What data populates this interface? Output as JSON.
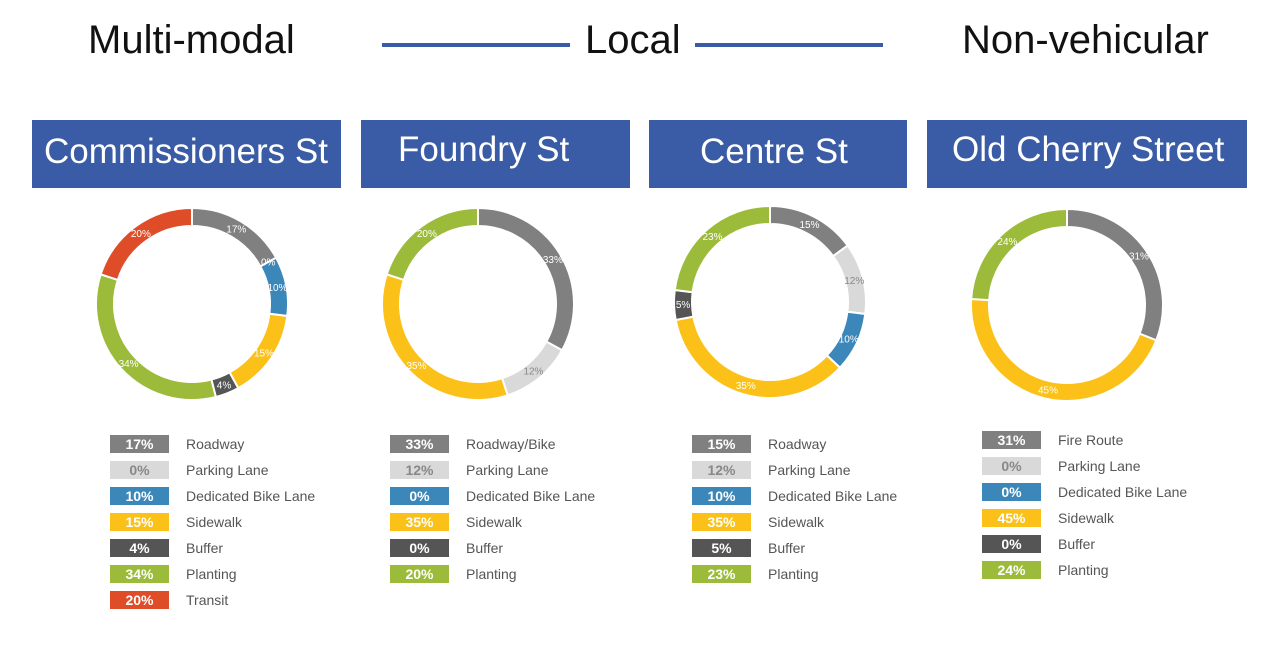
{
  "header": {
    "left_label": "Multi-modal",
    "center_label": "Local",
    "right_label": "Non-vehicular"
  },
  "colors": {
    "rule": "#3a5ba5",
    "banner": "#3a5ba5",
    "roadway": "#808080",
    "parking": "#d9d9d9",
    "bike": "#3b87b9",
    "sidewalk": "#fcc119",
    "buffer": "#555555",
    "planting": "#9dbb3b",
    "transit": "#de4d27"
  },
  "chart_data": [
    {
      "type": "donut",
      "title": "Commissioners St",
      "categories": [
        "Roadway",
        "Parking Lane",
        "Dedicated Bike Lane",
        "Sidewalk",
        "Buffer",
        "Planting",
        "Transit"
      ],
      "values": [
        17,
        0,
        10,
        15,
        4,
        34,
        20
      ],
      "labels": [
        "17%",
        "0%",
        "10%",
        "15%",
        "4%",
        "34%",
        "20%"
      ],
      "color_keys": [
        "roadway",
        "parking",
        "bike",
        "sidewalk",
        "buffer",
        "planting",
        "transit"
      ]
    },
    {
      "type": "donut",
      "title": "Foundry St",
      "categories": [
        "Roadway/Bike",
        "Parking Lane",
        "Dedicated Bike Lane",
        "Sidewalk",
        "Buffer",
        "Planting"
      ],
      "values": [
        33,
        12,
        0,
        35,
        0,
        20
      ],
      "labels": [
        "33%",
        "12%",
        "0%",
        "35%",
        "0%",
        "20%"
      ],
      "color_keys": [
        "roadway",
        "parking",
        "bike",
        "sidewalk",
        "buffer",
        "planting"
      ]
    },
    {
      "type": "donut",
      "title": "Centre St",
      "categories": [
        "Roadway",
        "Parking Lane",
        "Dedicated Bike Lane",
        "Sidewalk",
        "Buffer",
        "Planting"
      ],
      "values": [
        15,
        12,
        10,
        35,
        5,
        23
      ],
      "labels": [
        "15%",
        "12%",
        "10%",
        "35%",
        "5%",
        "23%"
      ],
      "color_keys": [
        "roadway",
        "parking",
        "bike",
        "sidewalk",
        "buffer",
        "planting"
      ]
    },
    {
      "type": "donut",
      "title": "Old Cherry Street",
      "categories": [
        "Fire Route",
        "Parking Lane",
        "Dedicated Bike Lane",
        "Sidewalk",
        "Buffer",
        "Planting"
      ],
      "values": [
        31,
        0,
        0,
        45,
        0,
        24
      ],
      "labels": [
        "31%",
        "0%",
        "0%",
        "45%",
        "0%",
        "24%"
      ],
      "color_keys": [
        "roadway",
        "parking",
        "bike",
        "sidewalk",
        "buffer",
        "planting"
      ]
    }
  ]
}
